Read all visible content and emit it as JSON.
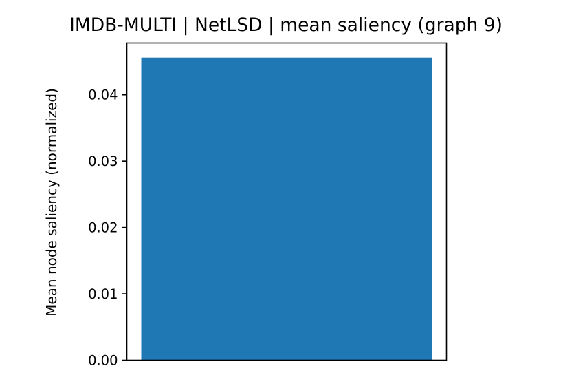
{
  "chart_data": {
    "type": "bar",
    "title": "IMDB-MULTI | NetLSD | mean saliency (graph 9)",
    "xlabel": "",
    "ylabel": "Mean node saliency (normalized)",
    "categories": [
      ""
    ],
    "values": [
      0.0456
    ],
    "ylim": [
      0,
      0.0478
    ],
    "yticks": [
      0,
      0.01,
      0.02,
      0.03,
      0.04
    ],
    "ytick_labels": [
      "0.00",
      "0.01",
      "0.02",
      "0.03",
      "0.04"
    ],
    "bar_color": "#1f77b4",
    "grid": false,
    "legend": "none"
  }
}
